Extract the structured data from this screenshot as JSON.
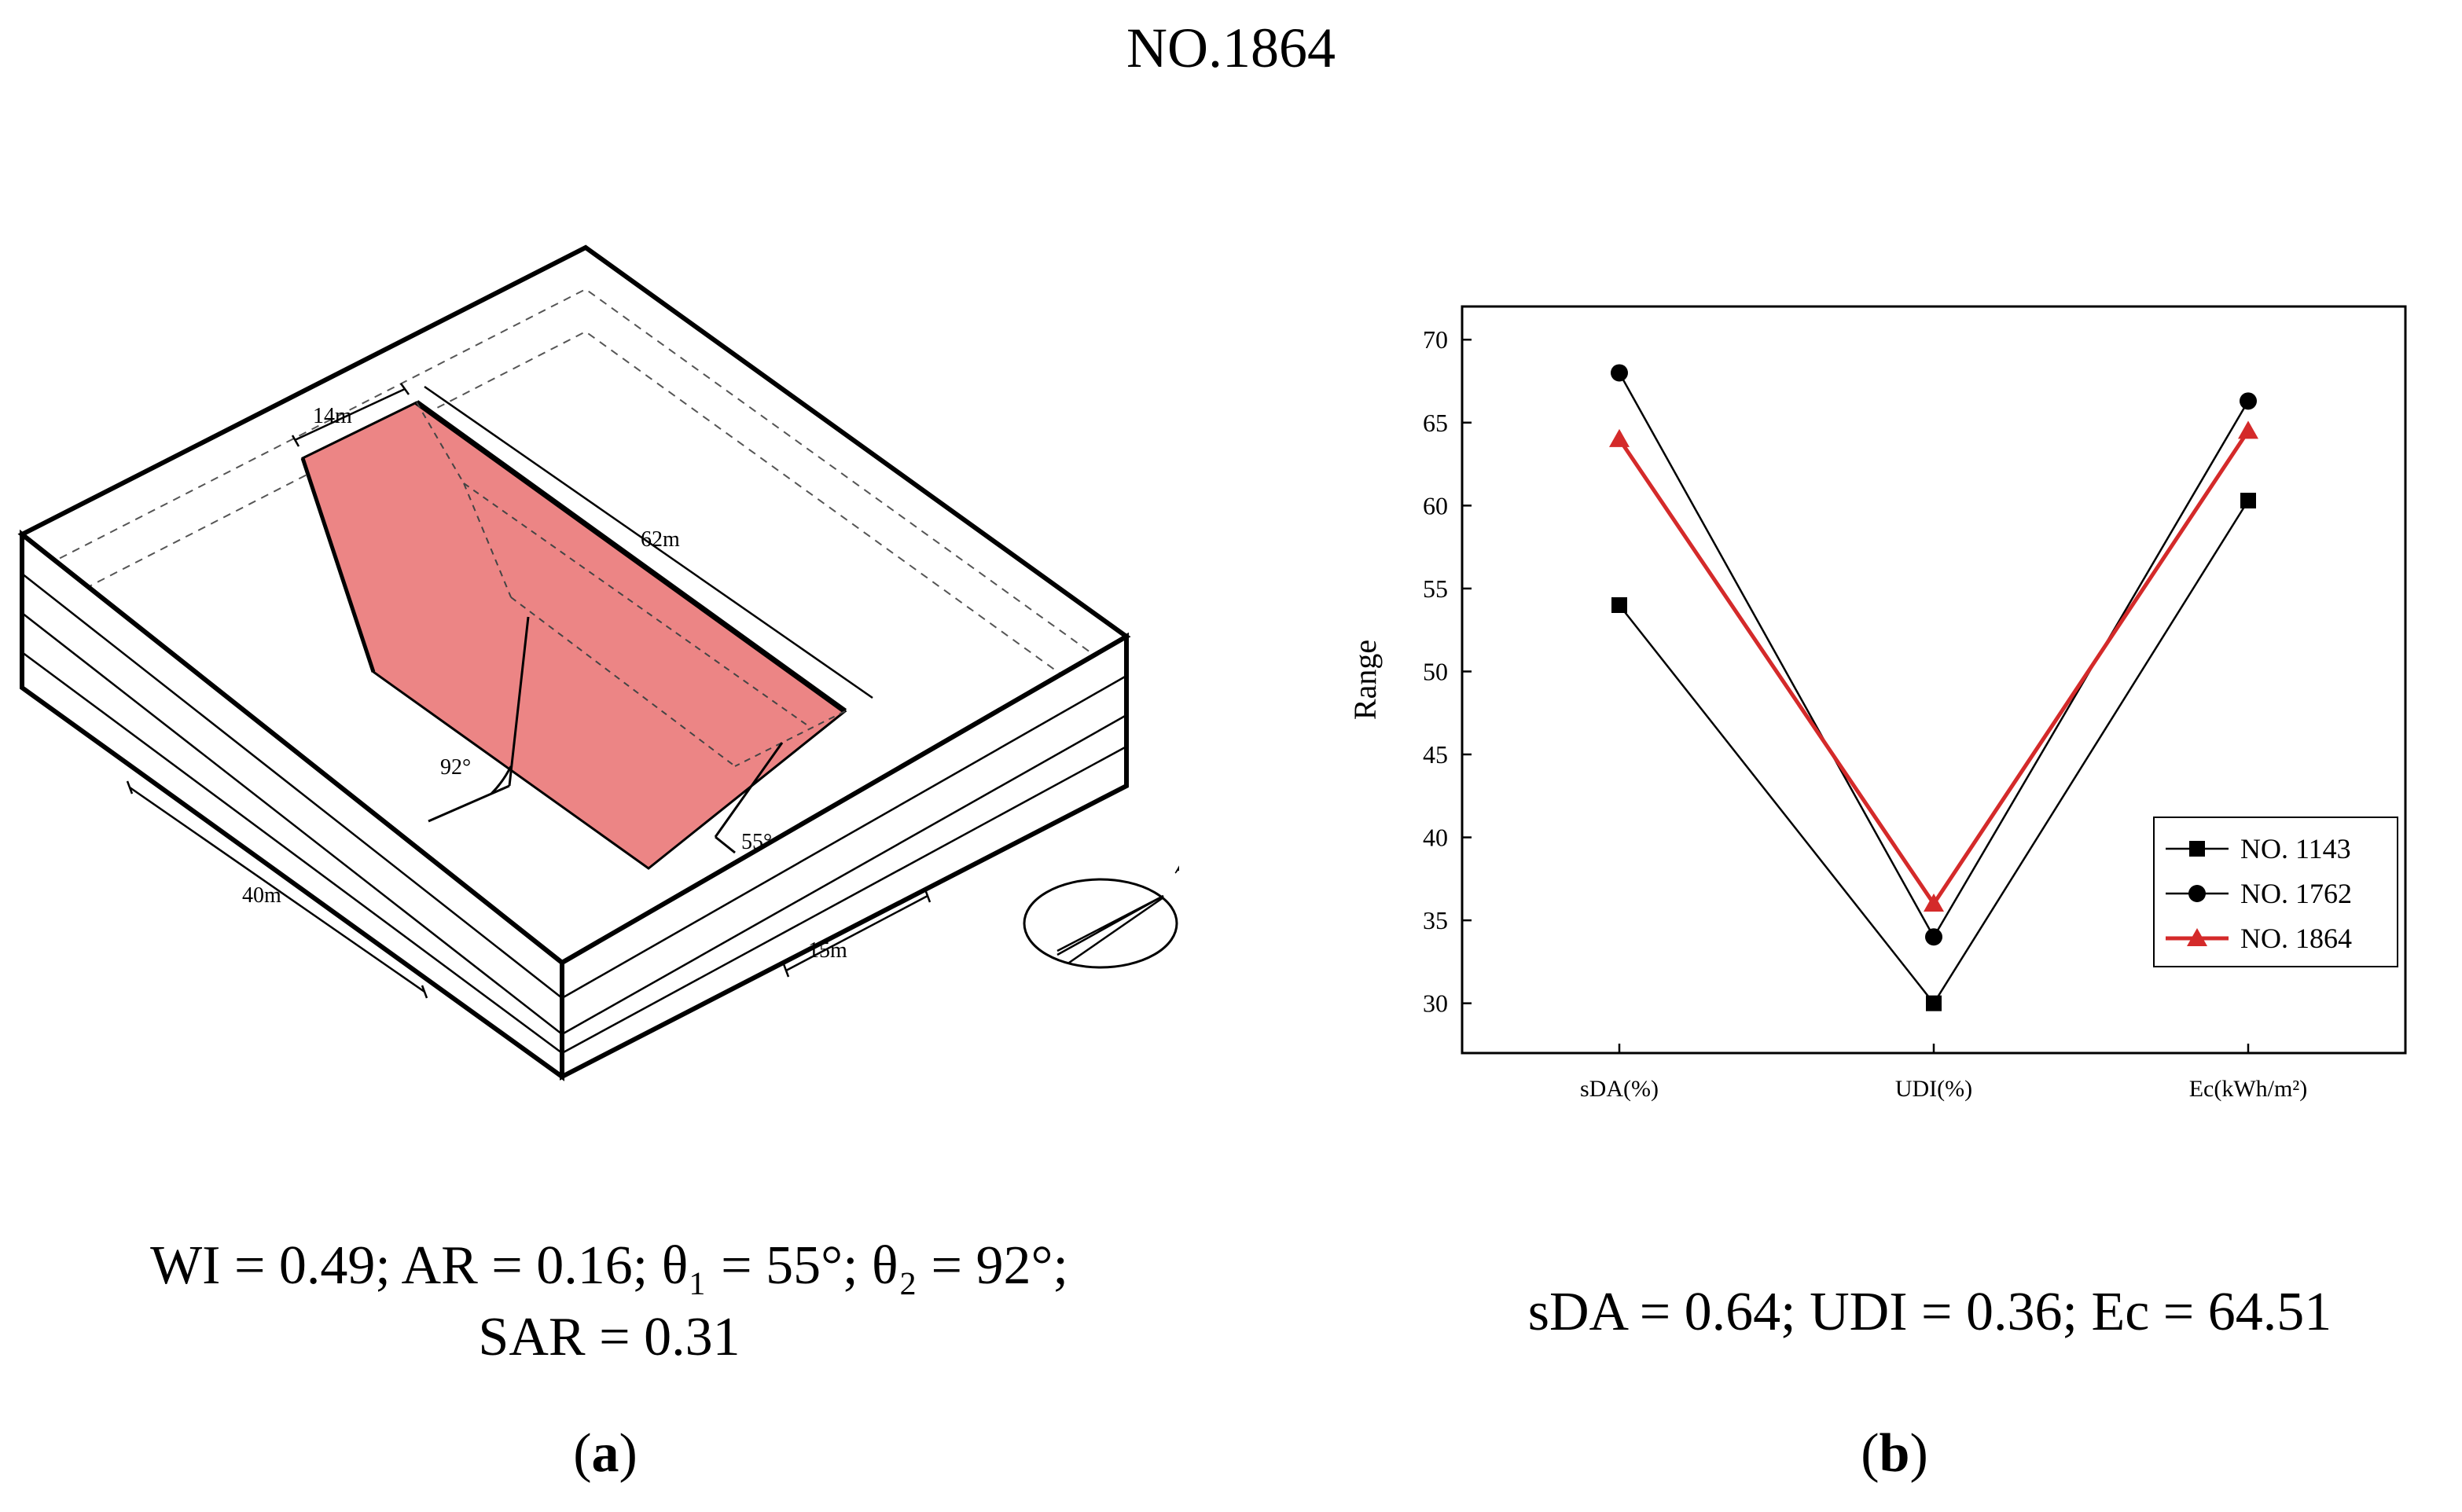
{
  "figure_title": "NO.1864",
  "panel_a": {
    "labels": {
      "width_top": "14m",
      "length": "62m",
      "angle2": "92°",
      "angle1": "55°",
      "depth": "40m",
      "setback": "15m",
      "north": "N"
    },
    "caption_line1": "WI = 0.49; AR = 0.16; θ₁ = 55°; θ₂ = 92°;",
    "caption_line2": "SAR = 0.31",
    "sub_label": "a"
  },
  "panel_b": {
    "caption": "sDA = 0.64; UDI = 0.36; Ec = 64.51",
    "sub_label": "b"
  },
  "chart_data": {
    "type": "line",
    "title": "",
    "xlabel": "",
    "ylabel": "Range",
    "ylim": [
      27,
      72
    ],
    "yticks": [
      30,
      35,
      40,
      45,
      50,
      55,
      60,
      65,
      70
    ],
    "categories": [
      "sDA(%)",
      "UDI(%)",
      "Ec(kWh/m²)"
    ],
    "series": [
      {
        "name": "NO. 1143",
        "values": [
          54,
          30,
          60.3
        ],
        "color": "#000000",
        "marker": "square"
      },
      {
        "name": "NO. 1762",
        "values": [
          68,
          34,
          66.3
        ],
        "color": "#000000",
        "marker": "circle"
      },
      {
        "name": "NO. 1864",
        "values": [
          64,
          36,
          64.5
        ],
        "color": "#d42a2a",
        "marker": "triangle"
      }
    ],
    "legend_position": "bottom-right",
    "grid": false
  },
  "colors": {
    "roof_fill": "#ec8585",
    "highlight_series": "#d42a2a"
  }
}
